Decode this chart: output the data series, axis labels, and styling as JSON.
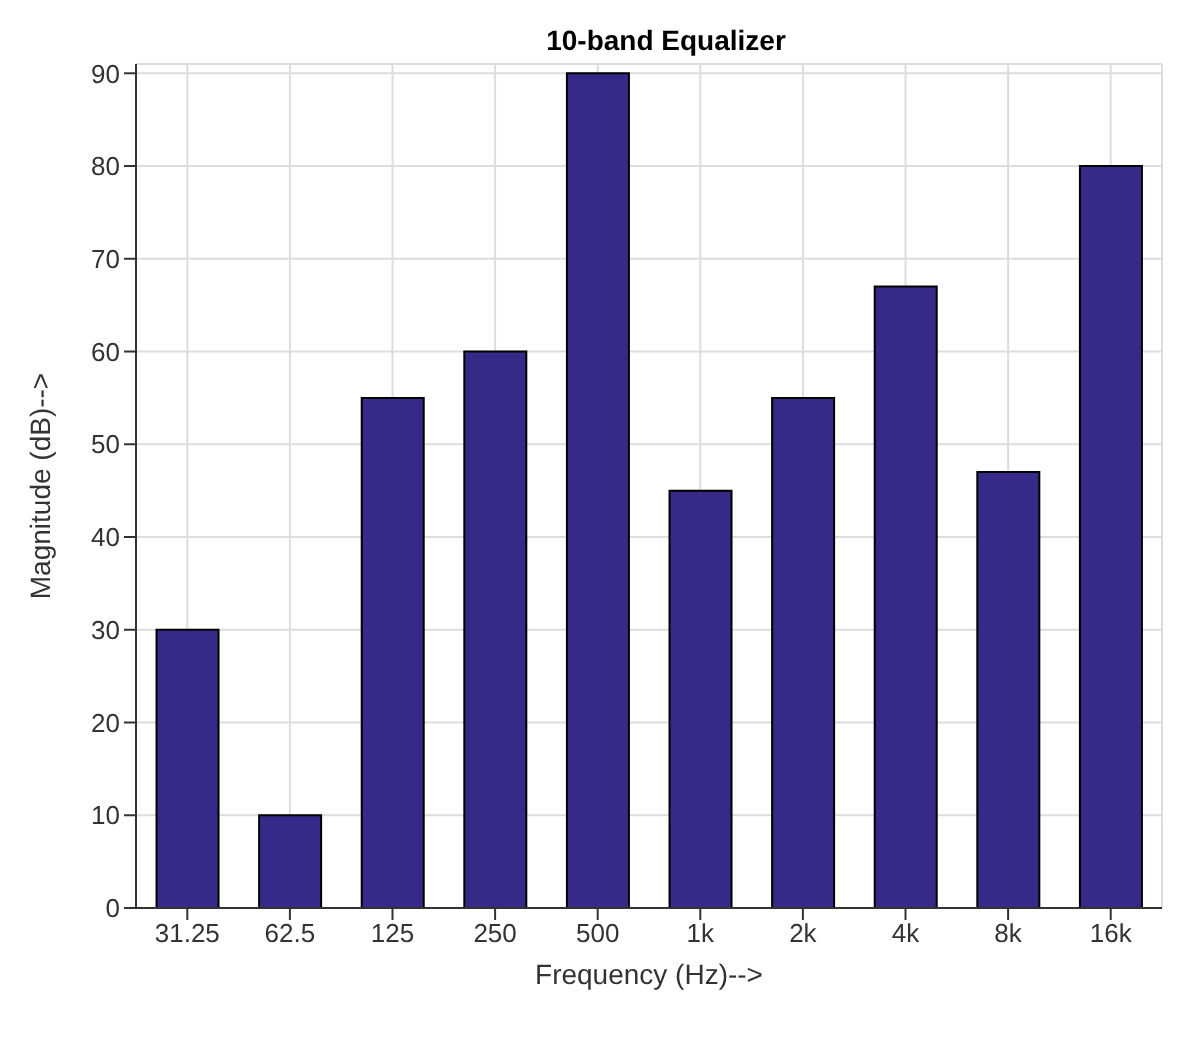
{
  "chart_data": {
    "type": "bar",
    "title": "10-band Equalizer",
    "xlabel": "Frequency (Hz)-->",
    "ylabel": "Magnitude (dB)-->",
    "categories": [
      "31.25",
      "62.5",
      "125",
      "250",
      "500",
      "1k",
      "2k",
      "4k",
      "8k",
      "16k"
    ],
    "values": [
      30,
      10,
      55,
      60,
      90,
      45,
      55,
      67,
      47,
      80
    ],
    "color": "#352a87",
    "ylim": [
      0,
      91
    ],
    "yticks": [
      0,
      10,
      20,
      30,
      40,
      50,
      60,
      70,
      80,
      90
    ],
    "grid": true
  }
}
